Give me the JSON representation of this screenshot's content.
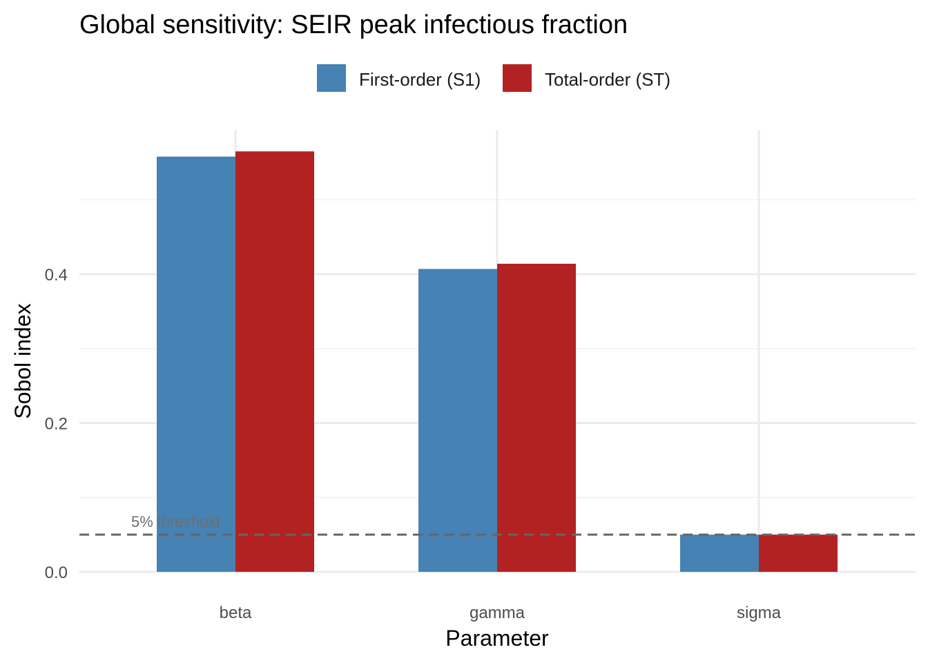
{
  "chart_data": {
    "type": "bar",
    "title": "Global sensitivity: SEIR peak infectious fraction",
    "xlabel": "Parameter",
    "ylabel": "Sobol index",
    "categories": [
      "beta",
      "gamma",
      "sigma"
    ],
    "series": [
      {
        "name": "First-order (S1)",
        "color": "#4682B4",
        "values": [
          0.558,
          0.407,
          0.05
        ]
      },
      {
        "name": "Total-order (ST)",
        "color": "#B22222",
        "values": [
          0.565,
          0.414,
          0.05
        ]
      }
    ],
    "ylim": [
      0,
      0.59
    ],
    "yticks": [
      {
        "value": 0.0,
        "label": "0.0"
      },
      {
        "value": 0.2,
        "label": "0.2"
      },
      {
        "value": 0.4,
        "label": "0.4"
      }
    ],
    "minor_yticks": [
      0.1,
      0.3,
      0.5
    ],
    "threshold": {
      "value": 0.05,
      "label": "5% threshold",
      "color": "#666666"
    },
    "legend_position": "top",
    "grid": true
  }
}
